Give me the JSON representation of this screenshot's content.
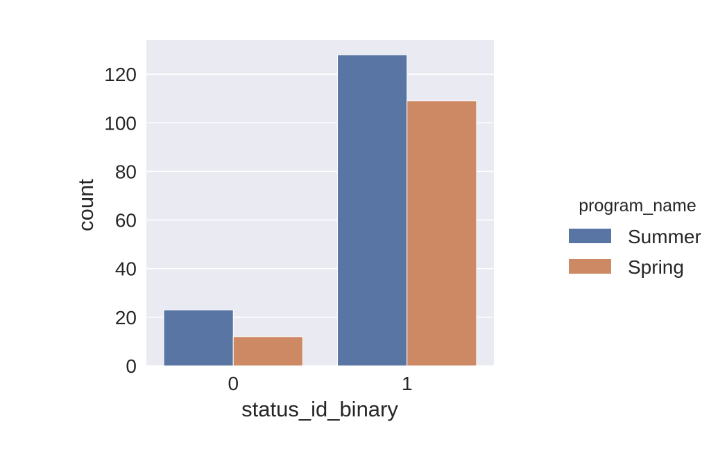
{
  "chart_data": {
    "type": "bar",
    "title": "",
    "xlabel": "status_id_binary",
    "ylabel": "count",
    "categories": [
      "0",
      "1"
    ],
    "ylim": [
      0,
      134
    ],
    "yticks": [
      0,
      20,
      40,
      60,
      80,
      100,
      120
    ],
    "grid": true,
    "legend": {
      "title": "program_name",
      "placement": "right"
    },
    "series": [
      {
        "name": "Summer",
        "values": [
          23,
          128
        ],
        "color": "#5975a4"
      },
      {
        "name": "Spring",
        "values": [
          12,
          109
        ],
        "color": "#cc8963"
      }
    ]
  }
}
